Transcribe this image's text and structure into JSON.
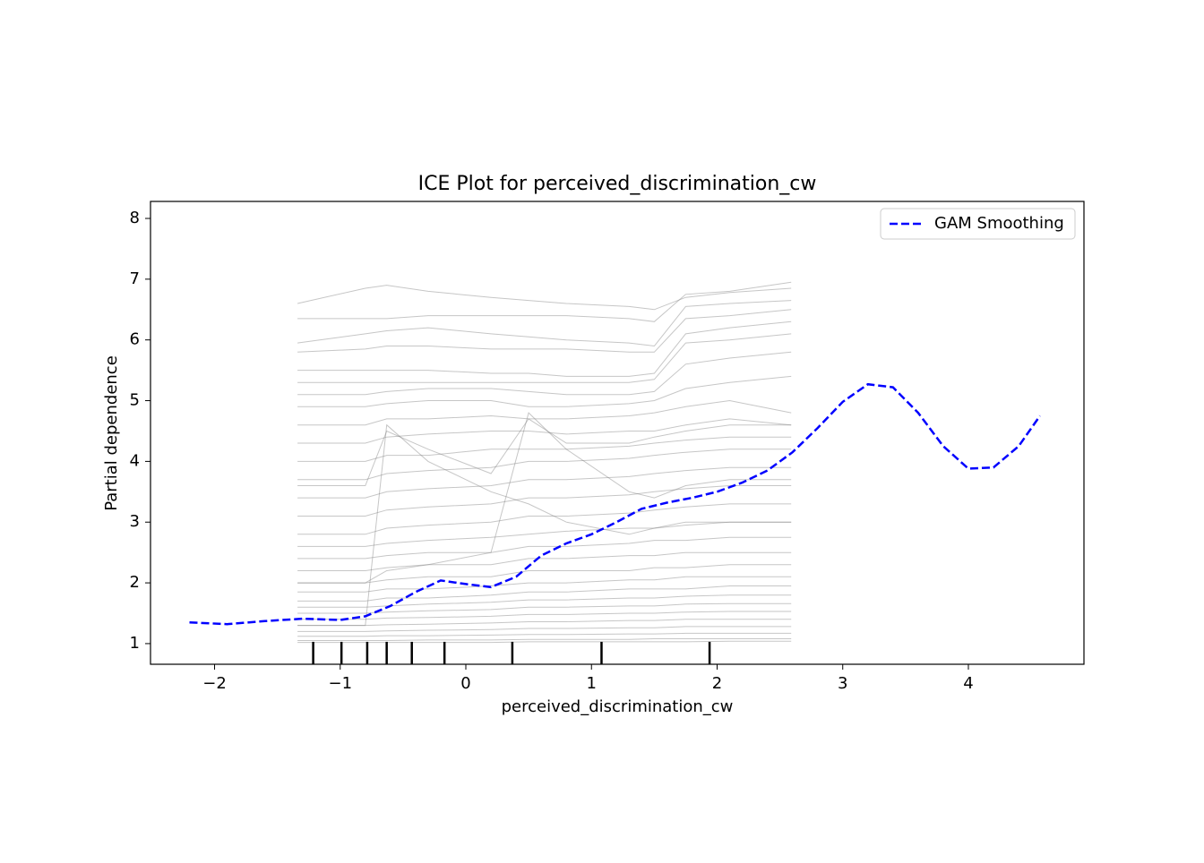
{
  "chart_data": {
    "type": "line",
    "title": "ICE Plot for perceived_discrimination_cw",
    "xlabel": "perceived_discrimination_cw",
    "ylabel": "Partial dependence",
    "xlim": [
      -2.51,
      4.92
    ],
    "ylim": [
      0.66,
      8.28
    ],
    "xticks": [
      {
        "value": -2,
        "label": "−2"
      },
      {
        "value": -1,
        "label": "−1"
      },
      0,
      1,
      2,
      3,
      4
    ],
    "yticks": [
      1,
      2,
      3,
      4,
      5,
      6,
      7,
      8
    ],
    "legend": "upper right",
    "series": [
      {
        "name": "GAM Smoothing",
        "color": "#0000ff",
        "dash": true,
        "x": [
          -2.2,
          -1.9,
          -1.6,
          -1.3,
          -1.0,
          -0.8,
          -0.6,
          -0.4,
          -0.2,
          0,
          0.2,
          0.4,
          0.6,
          0.8,
          1.0,
          1.2,
          1.4,
          1.6,
          1.8,
          2.0,
          2.2,
          2.4,
          2.6,
          2.8,
          3.0,
          3.2,
          3.4,
          3.6,
          3.8,
          4.0,
          4.2,
          4.4,
          4.57
        ],
        "values": [
          1.35,
          1.32,
          1.37,
          1.41,
          1.39,
          1.45,
          1.62,
          1.85,
          2.04,
          1.98,
          1.93,
          2.1,
          2.45,
          2.65,
          2.8,
          3.0,
          3.22,
          3.32,
          3.4,
          3.5,
          3.65,
          3.85,
          4.15,
          4.55,
          4.98,
          5.27,
          5.22,
          4.8,
          4.25,
          3.88,
          3.9,
          4.25,
          4.75
        ]
      }
    ],
    "ice_lines": {
      "color": "#808080",
      "x": [
        -1.34,
        -0.8,
        -0.63,
        -0.3,
        0.2,
        0.5,
        0.8,
        1.3,
        1.5,
        1.75,
        2.1,
        2.59
      ],
      "values": [
        [
          6.35,
          6.35,
          6.35,
          6.4,
          6.4,
          6.4,
          6.4,
          6.35,
          6.3,
          6.75,
          6.8,
          6.95
        ],
        [
          6.6,
          6.85,
          6.9,
          6.8,
          6.7,
          6.65,
          6.6,
          6.55,
          6.5,
          6.7,
          6.78,
          6.85
        ],
        [
          5.95,
          6.1,
          6.15,
          6.2,
          6.1,
          6.05,
          6.0,
          5.95,
          5.9,
          6.55,
          6.6,
          6.65
        ],
        [
          5.8,
          5.85,
          5.9,
          5.9,
          5.85,
          5.85,
          5.85,
          5.8,
          5.8,
          6.35,
          6.4,
          6.5
        ],
        [
          5.5,
          5.5,
          5.5,
          5.5,
          5.45,
          5.45,
          5.4,
          5.4,
          5.45,
          6.1,
          6.2,
          6.3
        ],
        [
          5.3,
          5.3,
          5.3,
          5.3,
          5.3,
          5.3,
          5.3,
          5.3,
          5.35,
          5.95,
          6.0,
          6.1
        ],
        [
          5.1,
          5.1,
          5.15,
          5.2,
          5.2,
          5.15,
          5.1,
          5.1,
          5.15,
          5.6,
          5.7,
          5.8
        ],
        [
          4.9,
          4.9,
          4.95,
          5.0,
          5.0,
          4.9,
          4.9,
          4.95,
          5.0,
          5.2,
          5.3,
          5.4
        ],
        [
          4.6,
          4.6,
          4.7,
          4.7,
          4.75,
          4.7,
          4.7,
          4.75,
          4.8,
          4.9,
          5.0,
          4.8
        ],
        [
          4.3,
          4.3,
          4.4,
          4.45,
          4.5,
          4.5,
          4.45,
          4.5,
          4.5,
          4.6,
          4.7,
          4.6
        ],
        [
          4.0,
          4.0,
          4.1,
          4.1,
          4.2,
          4.2,
          4.2,
          4.25,
          4.3,
          4.35,
          4.4,
          4.4
        ],
        [
          3.7,
          3.7,
          3.8,
          3.85,
          3.9,
          4.0,
          4.0,
          4.05,
          4.1,
          4.15,
          4.2,
          4.2
        ],
        [
          3.4,
          3.4,
          3.5,
          3.55,
          3.6,
          3.7,
          3.7,
          3.75,
          3.8,
          3.85,
          3.9,
          3.9
        ],
        [
          3.1,
          3.1,
          3.2,
          3.25,
          3.3,
          3.4,
          3.4,
          3.45,
          3.5,
          3.55,
          3.6,
          3.6
        ],
        [
          2.8,
          2.8,
          2.9,
          2.95,
          3.0,
          3.1,
          3.1,
          3.15,
          3.2,
          3.25,
          3.3,
          3.3
        ],
        [
          2.6,
          2.6,
          2.65,
          2.7,
          2.75,
          2.8,
          2.85,
          2.9,
          2.9,
          2.95,
          3.0,
          3.0
        ],
        [
          2.4,
          2.4,
          2.45,
          2.5,
          2.5,
          2.6,
          2.6,
          2.65,
          2.7,
          2.7,
          2.75,
          2.75
        ],
        [
          2.2,
          2.2,
          2.25,
          2.3,
          2.3,
          2.4,
          2.4,
          2.45,
          2.45,
          2.5,
          2.5,
          2.5
        ],
        [
          2.0,
          2.0,
          2.05,
          2.1,
          2.1,
          2.2,
          2.2,
          2.2,
          2.25,
          2.25,
          2.3,
          2.3
        ],
        [
          1.85,
          1.85,
          1.9,
          1.9,
          1.95,
          2.0,
          2.0,
          2.05,
          2.05,
          2.1,
          2.1,
          2.1
        ],
        [
          1.7,
          1.7,
          1.75,
          1.75,
          1.8,
          1.85,
          1.85,
          1.9,
          1.9,
          1.9,
          1.95,
          1.95
        ],
        [
          1.6,
          1.6,
          1.62,
          1.65,
          1.68,
          1.72,
          1.72,
          1.75,
          1.75,
          1.78,
          1.8,
          1.8
        ],
        [
          1.5,
          1.5,
          1.52,
          1.54,
          1.56,
          1.6,
          1.6,
          1.62,
          1.62,
          1.65,
          1.66,
          1.66
        ],
        [
          1.4,
          1.4,
          1.42,
          1.43,
          1.45,
          1.48,
          1.48,
          1.5,
          1.5,
          1.52,
          1.53,
          1.53
        ],
        [
          1.3,
          1.3,
          1.31,
          1.32,
          1.34,
          1.36,
          1.36,
          1.38,
          1.38,
          1.4,
          1.4,
          1.4
        ],
        [
          1.2,
          1.2,
          1.21,
          1.22,
          1.23,
          1.25,
          1.25,
          1.26,
          1.26,
          1.28,
          1.28,
          1.28
        ],
        [
          1.12,
          1.12,
          1.13,
          1.13,
          1.14,
          1.15,
          1.15,
          1.16,
          1.16,
          1.17,
          1.17,
          1.17
        ],
        [
          1.05,
          1.05,
          1.05,
          1.06,
          1.06,
          1.07,
          1.07,
          1.07,
          1.08,
          1.08,
          1.08,
          1.08
        ],
        [
          1.02,
          1.02,
          1.02,
          1.02,
          1.02,
          1.03,
          1.03,
          1.03,
          1.03,
          1.03,
          1.04,
          1.04
        ],
        [
          3.6,
          3.6,
          4.5,
          4.2,
          3.8,
          4.7,
          4.3,
          4.3,
          4.4,
          4.5,
          4.6,
          4.6
        ],
        [
          1.3,
          1.3,
          4.6,
          4.0,
          3.5,
          3.3,
          3.0,
          2.8,
          2.9,
          3.0,
          3.0,
          3.0
        ],
        [
          2.0,
          2.0,
          2.2,
          2.3,
          2.5,
          4.8,
          4.2,
          3.5,
          3.4,
          3.6,
          3.7,
          3.7
        ]
      ]
    },
    "rug_x": [
      -1.215,
      -0.99,
      -0.785,
      -0.63,
      -0.43,
      -0.17,
      0.37,
      1.08,
      1.94
    ]
  }
}
